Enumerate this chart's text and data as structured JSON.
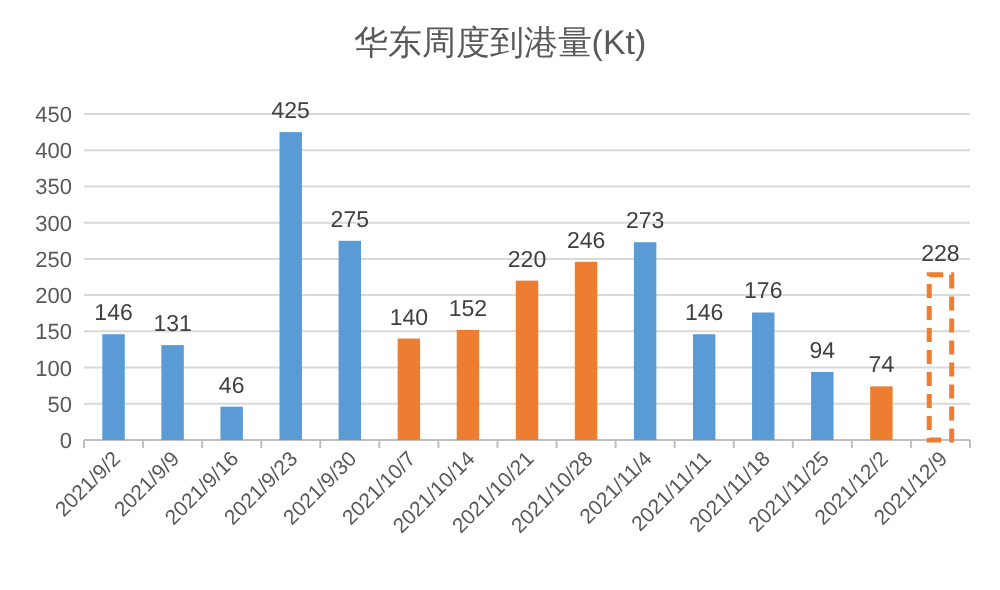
{
  "chart_data": {
    "type": "bar",
    "title": "华东周度到港量(Kt)",
    "categories": [
      "2021/9/2",
      "2021/9/9",
      "2021/9/16",
      "2021/9/23",
      "2021/9/30",
      "2021/10/7",
      "2021/10/14",
      "2021/10/21",
      "2021/10/28",
      "2021/11/4",
      "2021/11/11",
      "2021/11/18",
      "2021/11/25",
      "2021/12/2",
      "2021/12/9"
    ],
    "series": [
      {
        "values": [
          146,
          131,
          46,
          425,
          275,
          140,
          152,
          220,
          246,
          273,
          146,
          176,
          94,
          74,
          null
        ],
        "colors": [
          "#5b9bd5",
          "#5b9bd5",
          "#5b9bd5",
          "#5b9bd5",
          "#5b9bd5",
          "#ed7d31",
          "#ed7d31",
          "#ed7d31",
          "#ed7d31",
          "#5b9bd5",
          "#5b9bd5",
          "#5b9bd5",
          "#5b9bd5",
          "#ed7d31",
          null
        ]
      },
      {
        "values": [
          null,
          null,
          null,
          null,
          null,
          null,
          null,
          null,
          null,
          null,
          null,
          null,
          null,
          null,
          228
        ],
        "color": "#ed7d31",
        "line_style": "dashed"
      }
    ],
    "ylim": [
      0,
      450
    ],
    "yticks": [
      0,
      50,
      100,
      150,
      200,
      250,
      300,
      350,
      400,
      450
    ],
    "grid": "y",
    "data_labels": true
  }
}
